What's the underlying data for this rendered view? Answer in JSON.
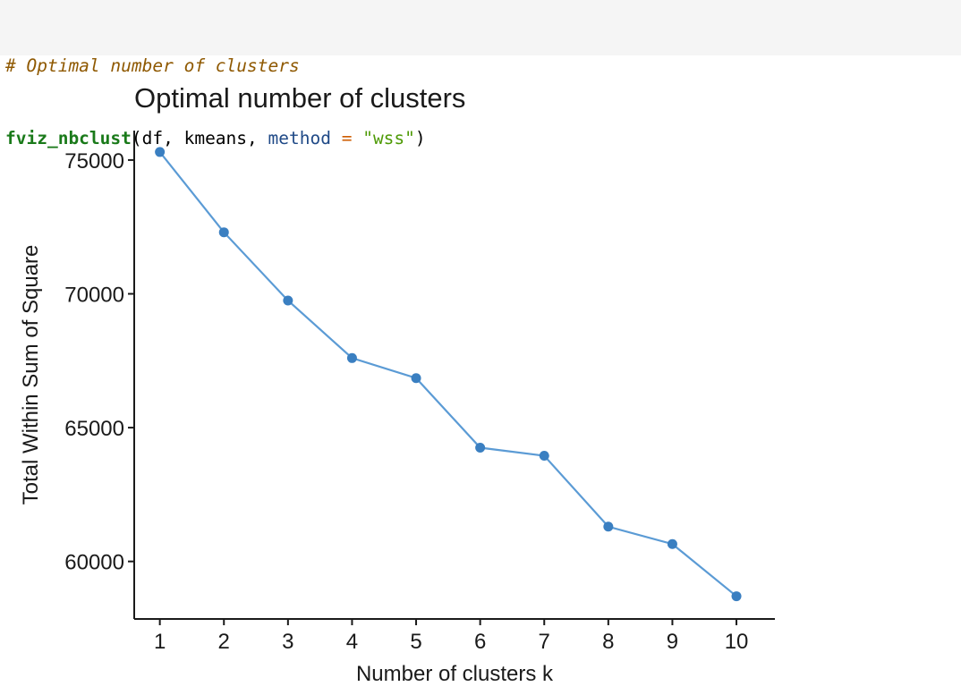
{
  "code": {
    "comment": "# Optimal number of clusters",
    "func": "fviz_nbclust",
    "open": "(df, kmeans, ",
    "arg_name": "method",
    "equals": " = ",
    "arg_value": "\"wss\"",
    "close": ")"
  },
  "colors": {
    "line": "#5b9bd5",
    "point": "#3a7fc1",
    "axis": "#1a1a1a"
  },
  "chart_data": {
    "type": "line",
    "title": "Optimal number of clusters",
    "xlabel": "Number of clusters k",
    "ylabel": "Total Within Sum of Square",
    "x": [
      1,
      2,
      3,
      4,
      5,
      6,
      7,
      8,
      9,
      10
    ],
    "y": [
      75300,
      72300,
      69750,
      67600,
      66850,
      64250,
      63950,
      61300,
      60650,
      58700
    ],
    "x_ticks": [
      "1",
      "2",
      "3",
      "4",
      "5",
      "6",
      "7",
      "8",
      "9",
      "10"
    ],
    "y_ticks": [
      60000,
      65000,
      70000,
      75000
    ],
    "y_tick_labels": [
      "60000",
      "65000",
      "70000",
      "75000"
    ],
    "ylim": [
      57850,
      76100
    ],
    "xlim": [
      0.6,
      10.6
    ],
    "grid": false,
    "legend": "none"
  }
}
